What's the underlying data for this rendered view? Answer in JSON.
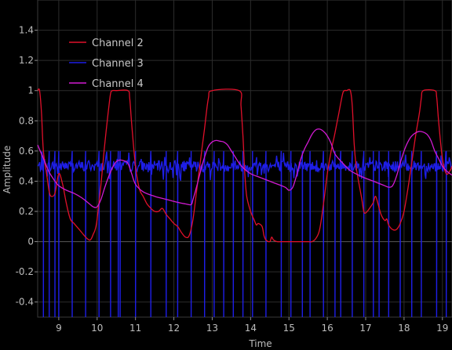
{
  "chart_data": {
    "type": "line",
    "xlabel": "Time",
    "ylabel": "Amplitude",
    "xlim": [
      8.45,
      19.25
    ],
    "ylim": [
      -0.5,
      1.6
    ],
    "x_ticks": [
      9,
      10,
      11,
      12,
      13,
      14,
      15,
      16,
      17,
      18,
      19
    ],
    "y_ticks": [
      -0.4,
      -0.2,
      0,
      0.2,
      0.4,
      0.6,
      0.8,
      1,
      1.2,
      1.4
    ],
    "grid": true,
    "legend_position": "top-left",
    "background": "#000000",
    "series": [
      {
        "name": "Channel 2",
        "color": "#e0102a",
        "x": [
          8.45,
          8.5,
          8.55,
          8.6,
          8.7,
          8.75,
          8.8,
          8.9,
          9.0,
          9.1,
          9.2,
          9.3,
          9.4,
          9.5,
          9.6,
          9.7,
          9.8,
          9.85,
          9.9,
          9.95,
          10.0,
          10.1,
          10.2,
          10.3,
          10.35,
          10.4,
          10.5,
          10.8,
          10.85,
          10.9,
          11.0,
          11.1,
          11.2,
          11.3,
          11.4,
          11.5,
          11.6,
          11.7,
          11.8,
          11.9,
          12.0,
          12.1,
          12.2,
          12.3,
          12.4,
          12.5,
          12.6,
          12.7,
          12.8,
          12.9,
          13.0,
          13.7,
          13.75,
          13.8,
          13.85,
          13.9,
          14.0,
          14.1,
          14.15,
          14.2,
          14.3,
          14.35,
          14.4,
          14.5,
          14.55,
          14.6,
          14.7,
          14.8,
          15.4,
          15.5,
          15.6,
          15.7,
          15.8,
          15.9,
          16.0,
          16.1,
          16.2,
          16.3,
          16.4,
          16.45,
          16.5,
          16.6,
          16.65,
          16.7,
          16.75,
          16.8,
          16.9,
          16.95,
          17.0,
          17.1,
          17.2,
          17.25,
          17.3,
          17.4,
          17.5,
          17.55,
          17.6,
          17.7,
          17.8,
          17.9,
          18.0,
          18.1,
          18.2,
          18.3,
          18.4,
          18.45,
          18.5,
          18.8,
          18.85,
          18.9,
          19.0,
          19.1,
          19.2,
          19.25
        ],
        "y": [
          1.0,
          1.0,
          0.85,
          0.6,
          0.42,
          0.33,
          0.3,
          0.32,
          0.45,
          0.38,
          0.25,
          0.15,
          0.12,
          0.09,
          0.06,
          0.03,
          0.01,
          0.02,
          0.05,
          0.08,
          0.15,
          0.38,
          0.65,
          0.88,
          0.98,
          1.0,
          1.0,
          1.0,
          0.95,
          0.78,
          0.5,
          0.35,
          0.3,
          0.25,
          0.22,
          0.2,
          0.2,
          0.22,
          0.18,
          0.15,
          0.12,
          0.1,
          0.06,
          0.03,
          0.04,
          0.15,
          0.35,
          0.55,
          0.75,
          0.95,
          1.0,
          1.0,
          0.9,
          0.7,
          0.45,
          0.3,
          0.2,
          0.14,
          0.11,
          0.12,
          0.1,
          0.04,
          0.01,
          0.0,
          0.03,
          0.01,
          0.0,
          0.0,
          0.0,
          0.0,
          0.0,
          0.02,
          0.08,
          0.25,
          0.45,
          0.6,
          0.72,
          0.85,
          0.98,
          1.0,
          1.0,
          1.0,
          0.9,
          0.65,
          0.5,
          0.42,
          0.28,
          0.2,
          0.19,
          0.22,
          0.26,
          0.3,
          0.27,
          0.18,
          0.14,
          0.15,
          0.11,
          0.08,
          0.08,
          0.12,
          0.2,
          0.35,
          0.52,
          0.7,
          0.85,
          0.95,
          1.0,
          1.0,
          0.96,
          0.8,
          0.55,
          0.45,
          0.47,
          0.5
        ]
      },
      {
        "name": "Channel 3",
        "color": "#1e1ee6",
        "baseline": 0.5,
        "noise": 0.07,
        "spike_low": -0.5,
        "spike_high": 0.6,
        "spike_x": [
          8.6,
          8.75,
          8.9,
          9.0,
          9.35,
          9.7,
          10.05,
          10.35,
          10.55,
          10.6,
          11.0,
          11.4,
          11.8,
          12.1,
          12.45,
          12.8,
          13.05,
          13.3,
          13.55,
          13.8,
          14.05,
          14.4,
          14.8,
          15.05,
          15.35,
          15.55,
          15.9,
          16.2,
          16.35,
          16.65,
          16.95,
          17.2,
          17.35,
          17.6,
          17.9,
          18.2,
          18.45,
          18.85,
          19.1
        ]
      },
      {
        "name": "Channel 4",
        "color": "#d21ad2",
        "x": [
          8.45,
          8.55,
          8.65,
          8.75,
          8.9,
          9.0,
          9.2,
          9.4,
          9.6,
          9.8,
          9.9,
          10.0,
          10.1,
          10.2,
          10.3,
          10.4,
          10.5,
          10.6,
          10.7,
          10.8,
          10.9,
          11.0,
          11.2,
          11.5,
          11.8,
          12.1,
          12.3,
          12.45,
          12.5,
          12.6,
          12.7,
          12.8,
          12.9,
          13.0,
          13.1,
          13.2,
          13.3,
          13.4,
          13.5,
          13.6,
          13.7,
          13.8,
          14.0,
          14.3,
          14.6,
          14.9,
          15.0,
          15.1,
          15.2,
          15.3,
          15.4,
          15.5,
          15.6,
          15.7,
          15.8,
          15.9,
          16.0,
          16.1,
          16.2,
          16.4,
          16.6,
          16.9,
          17.2,
          17.5,
          17.6,
          17.7,
          17.8,
          17.9,
          18.0,
          18.1,
          18.2,
          18.3,
          18.4,
          18.5,
          18.6,
          18.7,
          18.8,
          18.9,
          19.0,
          19.1,
          19.25
        ],
        "y": [
          0.64,
          0.58,
          0.52,
          0.46,
          0.4,
          0.37,
          0.34,
          0.32,
          0.29,
          0.25,
          0.23,
          0.23,
          0.28,
          0.36,
          0.43,
          0.49,
          0.53,
          0.54,
          0.535,
          0.52,
          0.45,
          0.38,
          0.33,
          0.3,
          0.28,
          0.26,
          0.25,
          0.245,
          0.28,
          0.37,
          0.47,
          0.56,
          0.63,
          0.66,
          0.67,
          0.665,
          0.66,
          0.64,
          0.6,
          0.56,
          0.52,
          0.49,
          0.45,
          0.42,
          0.39,
          0.36,
          0.34,
          0.36,
          0.44,
          0.54,
          0.61,
          0.66,
          0.71,
          0.74,
          0.745,
          0.73,
          0.7,
          0.65,
          0.58,
          0.52,
          0.47,
          0.43,
          0.4,
          0.37,
          0.36,
          0.37,
          0.43,
          0.52,
          0.6,
          0.66,
          0.7,
          0.72,
          0.73,
          0.725,
          0.71,
          0.67,
          0.6,
          0.55,
          0.5,
          0.47,
          0.44
        ]
      }
    ]
  }
}
